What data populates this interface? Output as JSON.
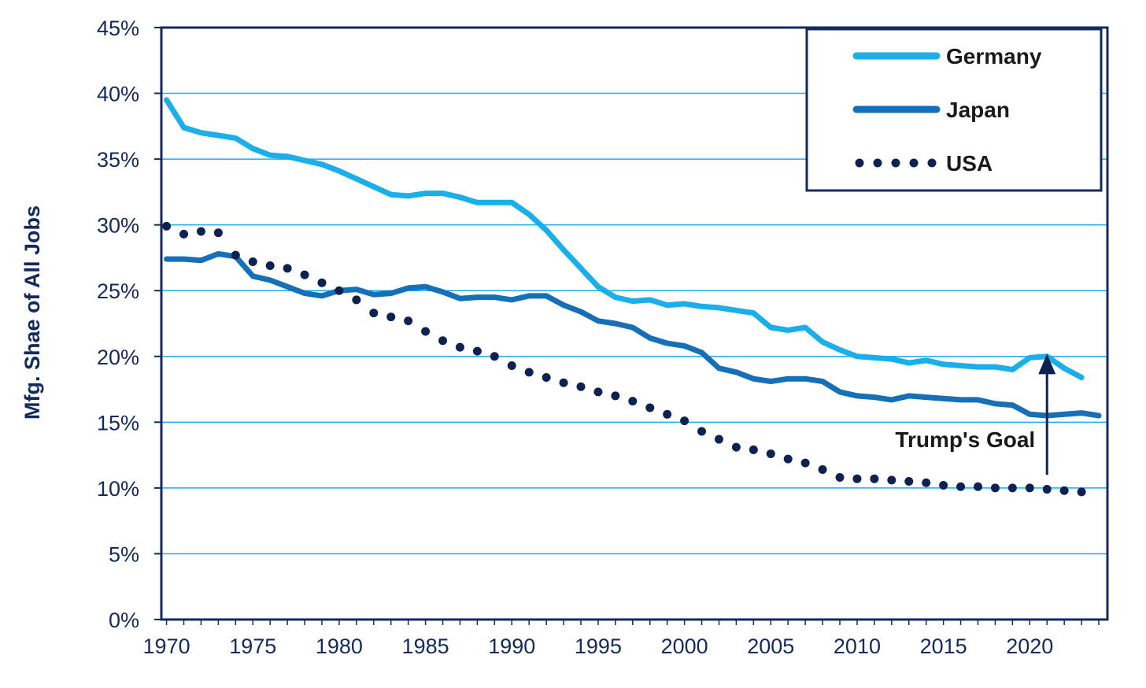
{
  "chart_data": {
    "type": "line",
    "title": "",
    "xlabel": "",
    "ylabel": "Mfg. Shae of All Jobs",
    "xlim": [
      1969.7,
      2024.5
    ],
    "ylim": [
      0,
      45
    ],
    "x_ticks": [
      1970,
      1975,
      1980,
      1985,
      1990,
      1995,
      2000,
      2005,
      2010,
      2015,
      2020
    ],
    "x_tick_labels": [
      "1970",
      "1975",
      "1980",
      "1985",
      "1990",
      "1995",
      "2000",
      "2005",
      "2010",
      "2015",
      "2020"
    ],
    "y_ticks": [
      0,
      5,
      10,
      15,
      20,
      25,
      30,
      35,
      40,
      45
    ],
    "y_tick_labels": [
      "0%",
      "5%",
      "10%",
      "15%",
      "20%",
      "25%",
      "30%",
      "35%",
      "40%",
      "45%"
    ],
    "grid": "horizontal",
    "legend_position": "top-right",
    "series": [
      {
        "name": "Germany",
        "color": "#1aaeea",
        "style": "solid",
        "x": [
          1970,
          1971,
          1972,
          1973,
          1974,
          1975,
          1976,
          1977,
          1978,
          1979,
          1980,
          1981,
          1982,
          1983,
          1984,
          1985,
          1986,
          1987,
          1988,
          1989,
          1990,
          1991,
          1992,
          1993,
          1994,
          1995,
          1996,
          1997,
          1998,
          1999,
          2000,
          2001,
          2002,
          2003,
          2004,
          2005,
          2006,
          2007,
          2008,
          2009,
          2010,
          2011,
          2012,
          2013,
          2014,
          2015,
          2016,
          2017,
          2018,
          2019,
          2020,
          2021,
          2022,
          2023
        ],
        "values": [
          39.5,
          37.4,
          37.0,
          36.8,
          36.6,
          35.8,
          35.3,
          35.2,
          34.9,
          34.6,
          34.1,
          33.5,
          32.9,
          32.3,
          32.2,
          32.4,
          32.4,
          32.1,
          31.7,
          31.7,
          31.7,
          30.8,
          29.6,
          28.1,
          26.7,
          25.3,
          24.5,
          24.2,
          24.3,
          23.9,
          24.0,
          23.8,
          23.7,
          23.5,
          23.3,
          22.2,
          22.0,
          22.2,
          21.1,
          20.5,
          20.0,
          19.9,
          19.8,
          19.5,
          19.7,
          19.4,
          19.3,
          19.2,
          19.2,
          19.0,
          19.9,
          20.0,
          19.1,
          18.4
        ]
      },
      {
        "name": "Japan",
        "color": "#1570b8",
        "style": "solid",
        "x": [
          1970,
          1971,
          1972,
          1973,
          1974,
          1975,
          1976,
          1977,
          1978,
          1979,
          1980,
          1981,
          1982,
          1983,
          1984,
          1985,
          1986,
          1987,
          1988,
          1989,
          1990,
          1991,
          1992,
          1993,
          1994,
          1995,
          1996,
          1997,
          1998,
          1999,
          2000,
          2001,
          2002,
          2003,
          2004,
          2005,
          2006,
          2007,
          2008,
          2009,
          2010,
          2011,
          2012,
          2013,
          2014,
          2015,
          2016,
          2017,
          2018,
          2019,
          2020,
          2021,
          2022,
          2023,
          2024
        ],
        "values": [
          27.4,
          27.4,
          27.3,
          27.8,
          27.6,
          26.1,
          25.8,
          25.3,
          24.8,
          24.6,
          25.0,
          25.1,
          24.7,
          24.8,
          25.2,
          25.3,
          24.9,
          24.4,
          24.5,
          24.5,
          24.3,
          24.6,
          24.6,
          23.9,
          23.4,
          22.7,
          22.5,
          22.2,
          21.4,
          21.0,
          20.8,
          20.3,
          19.1,
          18.8,
          18.3,
          18.1,
          18.3,
          18.3,
          18.1,
          17.3,
          17.0,
          16.9,
          16.7,
          17.0,
          16.9,
          16.8,
          16.7,
          16.7,
          16.4,
          16.3,
          15.6,
          15.5,
          15.6,
          15.7,
          15.5
        ]
      },
      {
        "name": "USA",
        "color": "#0e2251",
        "style": "dotted",
        "x": [
          1970,
          1971,
          1972,
          1973,
          1974,
          1975,
          1976,
          1977,
          1978,
          1979,
          1980,
          1981,
          1982,
          1983,
          1984,
          1985,
          1986,
          1987,
          1988,
          1989,
          1990,
          1991,
          1992,
          1993,
          1994,
          1995,
          1996,
          1997,
          1998,
          1999,
          2000,
          2001,
          2002,
          2003,
          2004,
          2005,
          2006,
          2007,
          2008,
          2009,
          2010,
          2011,
          2012,
          2013,
          2014,
          2015,
          2016,
          2017,
          2018,
          2019,
          2020,
          2021,
          2022,
          2023
        ],
        "values": [
          29.9,
          29.3,
          29.5,
          29.4,
          27.7,
          27.2,
          26.9,
          26.7,
          26.2,
          25.6,
          25.0,
          24.3,
          23.3,
          23.0,
          22.7,
          21.9,
          21.2,
          20.7,
          20.4,
          20.0,
          19.3,
          18.8,
          18.4,
          18.0,
          17.7,
          17.3,
          17.0,
          16.6,
          16.1,
          15.6,
          15.1,
          14.3,
          13.7,
          13.1,
          12.9,
          12.6,
          12.2,
          11.9,
          11.4,
          10.8,
          10.7,
          10.7,
          10.6,
          10.5,
          10.4,
          10.2,
          10.1,
          10.1,
          10.0,
          10.0,
          10.0,
          9.9,
          9.8,
          9.7
        ]
      }
    ],
    "annotations": [
      {
        "text": "Trump's Goal",
        "arrow_x": 2021,
        "arrow_from_y": 11,
        "arrow_to_y": 20.2
      }
    ]
  }
}
